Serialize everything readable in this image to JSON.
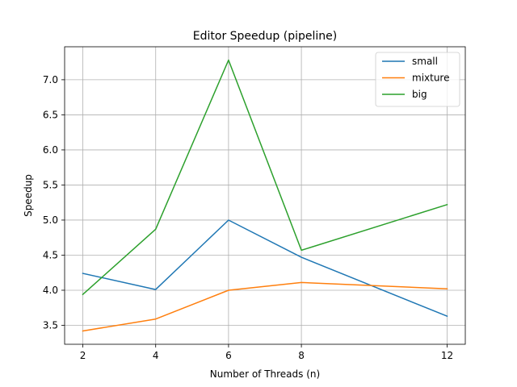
{
  "chart_data": {
    "type": "line",
    "title": "Editor Speedup (pipeline)",
    "xlabel": "Number of Threads (n)",
    "ylabel": "Speedup",
    "x": [
      2,
      4,
      6,
      8,
      12
    ],
    "xticks": [
      "2",
      "4",
      "6",
      "8",
      "12"
    ],
    "yticks": [
      "3.5",
      "4.0",
      "4.5",
      "5.0",
      "5.5",
      "6.0",
      "6.5",
      "7.0"
    ],
    "ytick_values": [
      3.5,
      4.0,
      4.5,
      5.0,
      5.5,
      6.0,
      6.5,
      7.0
    ],
    "xlim": [
      1.5,
      12.5
    ],
    "ylim": [
      3.23,
      7.47
    ],
    "grid": true,
    "legend_position": "top-right",
    "series": [
      {
        "name": "small",
        "color": "#1f77b4",
        "values": [
          4.24,
          4.01,
          5.0,
          4.47,
          3.63
        ]
      },
      {
        "name": "mixture",
        "color": "#ff7f0e",
        "values": [
          3.42,
          3.59,
          4.0,
          4.11,
          4.02
        ]
      },
      {
        "name": "big",
        "color": "#2ca02c",
        "values": [
          3.94,
          4.87,
          7.28,
          4.57,
          5.22
        ]
      }
    ]
  }
}
